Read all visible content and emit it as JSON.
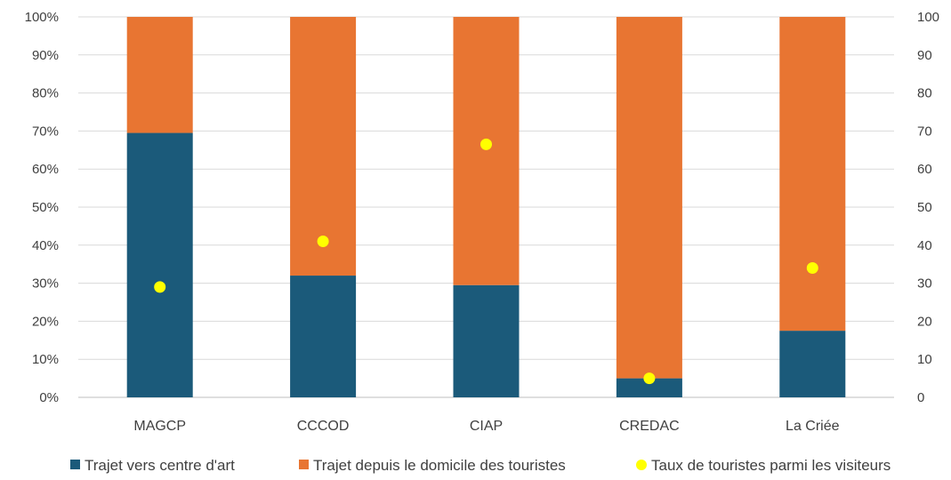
{
  "chart_data": {
    "type": "bar",
    "stacked": true,
    "normalized": true,
    "categories": [
      "MAGCP",
      "CCCOD",
      "CIAP",
      "CREDAC",
      "La Criée"
    ],
    "series": [
      {
        "name": "Trajet vers centre d'art",
        "values": [
          69.5,
          32,
          29.5,
          5,
          17.5
        ],
        "color": "#1b5a7a",
        "axis": "left",
        "kind": "bar"
      },
      {
        "name": "Trajet depuis le domicile des touristes",
        "values": [
          30.5,
          68,
          70.5,
          95,
          82.5
        ],
        "color": "#e87532",
        "axis": "left",
        "kind": "bar"
      },
      {
        "name": "Taux de touristes parmi les visiteurs",
        "values": [
          29,
          41,
          66.5,
          5,
          34
        ],
        "color": "#ffff00",
        "axis": "right",
        "kind": "scatter"
      }
    ],
    "left_axis": {
      "ticks": [
        "0%",
        "10%",
        "20%",
        "30%",
        "40%",
        "50%",
        "60%",
        "70%",
        "80%",
        "90%",
        "100%"
      ],
      "ylim": [
        0,
        100
      ]
    },
    "right_axis": {
      "ticks": [
        "0",
        "10",
        "20",
        "30",
        "40",
        "50",
        "60",
        "70",
        "80",
        "90",
        "100"
      ],
      "ylim": [
        0,
        100
      ]
    },
    "grid": true,
    "legend_position": "bottom",
    "title": "",
    "xlabel": "",
    "ylabel": ""
  }
}
